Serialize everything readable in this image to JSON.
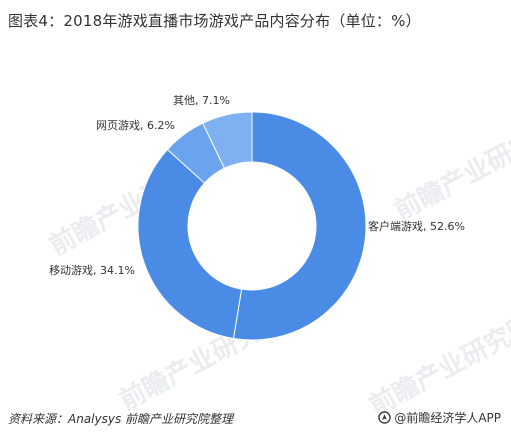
{
  "title": "图表4：2018年游戏直播市场游戏产品内容分布（单位：%）",
  "source": "资料来源：Analysys  前瞻产业研究院整理",
  "brand": "@前瞻经济学人APP",
  "watermark": "前瞻产业研究院",
  "colors": {
    "primary": "#4a8be6",
    "secondary": "#6aa3ee",
    "tertiary": "#7fb1f0"
  },
  "chart_data": {
    "type": "pie",
    "donut": true,
    "title": "图表4：2018年游戏直播市场游戏产品内容分布（单位：%）",
    "slices": [
      {
        "name": "客户端游戏",
        "value": 52.6,
        "label": "客户端游戏, 52.6%"
      },
      {
        "name": "移动游戏",
        "value": 34.1,
        "label": "移动游戏, 34.1%"
      },
      {
        "name": "网页游戏",
        "value": 6.2,
        "label": "网页游戏, 6.2%"
      },
      {
        "name": "其他",
        "value": 7.1,
        "label": "其他, 7.1%"
      }
    ]
  }
}
